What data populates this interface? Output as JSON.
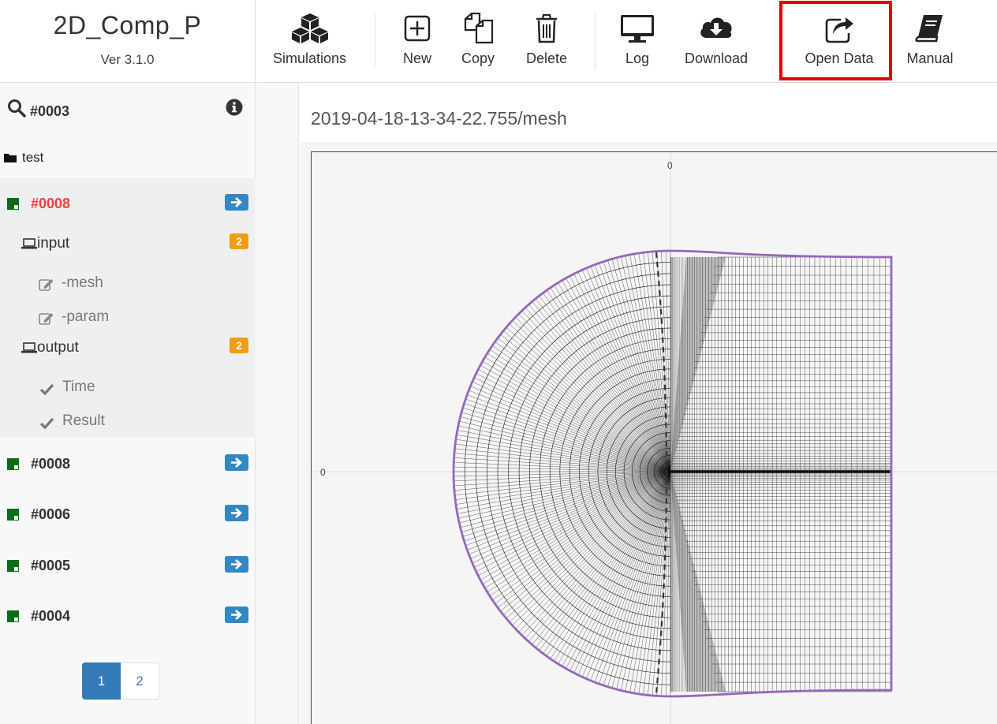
{
  "app": {
    "title": "2D_Comp_P",
    "version": "Ver 3.1.0"
  },
  "toolbar": {
    "simulations": "Simulations",
    "new": "New",
    "copy": "Copy",
    "delete": "Delete",
    "log": "Log",
    "download": "Download",
    "open_data": "Open Data",
    "manual": "Manual"
  },
  "highlight_color": "#e00000",
  "sidebar": {
    "search_text": "#0003",
    "folder": "test",
    "active_sim": {
      "label": "#0008",
      "input": {
        "label": "input",
        "badge": "2",
        "items": [
          "-mesh",
          "-param"
        ]
      },
      "output": {
        "label": "output",
        "badge": "2",
        "items": [
          "Time",
          "Result"
        ]
      }
    },
    "sims": [
      "#0008",
      "#0006",
      "#0005",
      "#0004"
    ],
    "pages": [
      "1",
      "2"
    ],
    "active_page": "1"
  },
  "main": {
    "path": "2019-04-18-13-34-22.755/mesh",
    "x_axis_label": "0",
    "y_axis_label": "0",
    "mesh_color": "#111111",
    "boundary_color": "#9467bd"
  }
}
